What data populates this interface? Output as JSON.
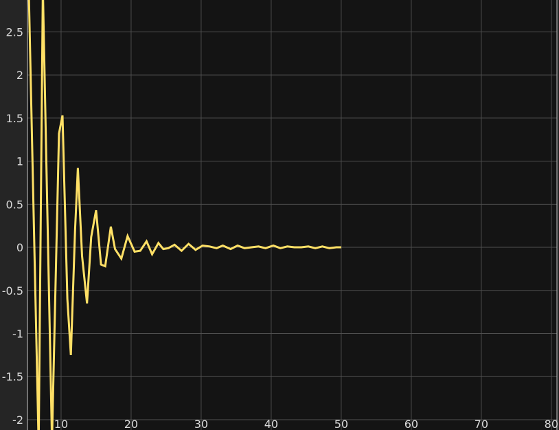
{
  "colors": {
    "figure_background": "#252525",
    "axes_background": "#141414",
    "grid": "#4f4f4f",
    "axes_border": "#c8c8c8",
    "tick_text": "#d9d9d9",
    "signal": "#ffe066"
  },
  "chart_data": {
    "type": "line",
    "title": "",
    "xlabel": "",
    "ylabel": "",
    "grid": true,
    "legend": "none",
    "xlim": [
      5.2,
      80.8
    ],
    "ylim": [
      -2.12,
      2.87
    ],
    "xticks": [
      10,
      20,
      30,
      40,
      50,
      60,
      70,
      80
    ],
    "yticks": [
      2.5,
      2,
      1.5,
      1,
      0.5,
      0,
      -0.5,
      -1,
      -1.5,
      -2
    ],
    "series": [
      {
        "x": [
          5.4,
          6.8,
          7.4,
          8.7,
          9.7,
          10.2,
          10.9,
          11.4,
          12.0,
          12.4,
          13.0,
          13.7,
          14.3,
          15.0,
          15.7,
          16.3,
          17.1,
          17.7,
          18.6,
          19.5,
          20.5,
          21.3,
          22.2,
          23.0,
          23.9,
          24.6,
          25.3,
          26.2,
          27.2,
          28.2,
          29.2,
          30.2,
          31.2,
          32.2,
          33.1,
          34.2,
          35.2,
          36.2,
          37.2,
          38.2,
          39.2,
          40.3,
          41.3,
          42.3,
          43.3,
          44.3,
          45.3,
          46.3,
          47.3,
          48.3,
          49.3,
          50.0
        ],
        "y": [
          2.95,
          -2.3,
          3.0,
          -2.25,
          1.32,
          1.53,
          -0.6,
          -1.25,
          0.2,
          0.92,
          -0.1,
          -0.65,
          0.12,
          0.43,
          -0.2,
          -0.22,
          0.24,
          -0.02,
          -0.13,
          0.13,
          -0.05,
          -0.04,
          0.07,
          -0.08,
          0.05,
          -0.02,
          -0.01,
          0.03,
          -0.04,
          0.04,
          -0.03,
          0.02,
          0.01,
          -0.01,
          0.02,
          -0.02,
          0.02,
          -0.01,
          0.0,
          0.01,
          -0.01,
          0.02,
          -0.01,
          0.01,
          0.0,
          0.0,
          0.01,
          -0.01,
          0.01,
          -0.01,
          0.0,
          0.0
        ]
      }
    ]
  }
}
